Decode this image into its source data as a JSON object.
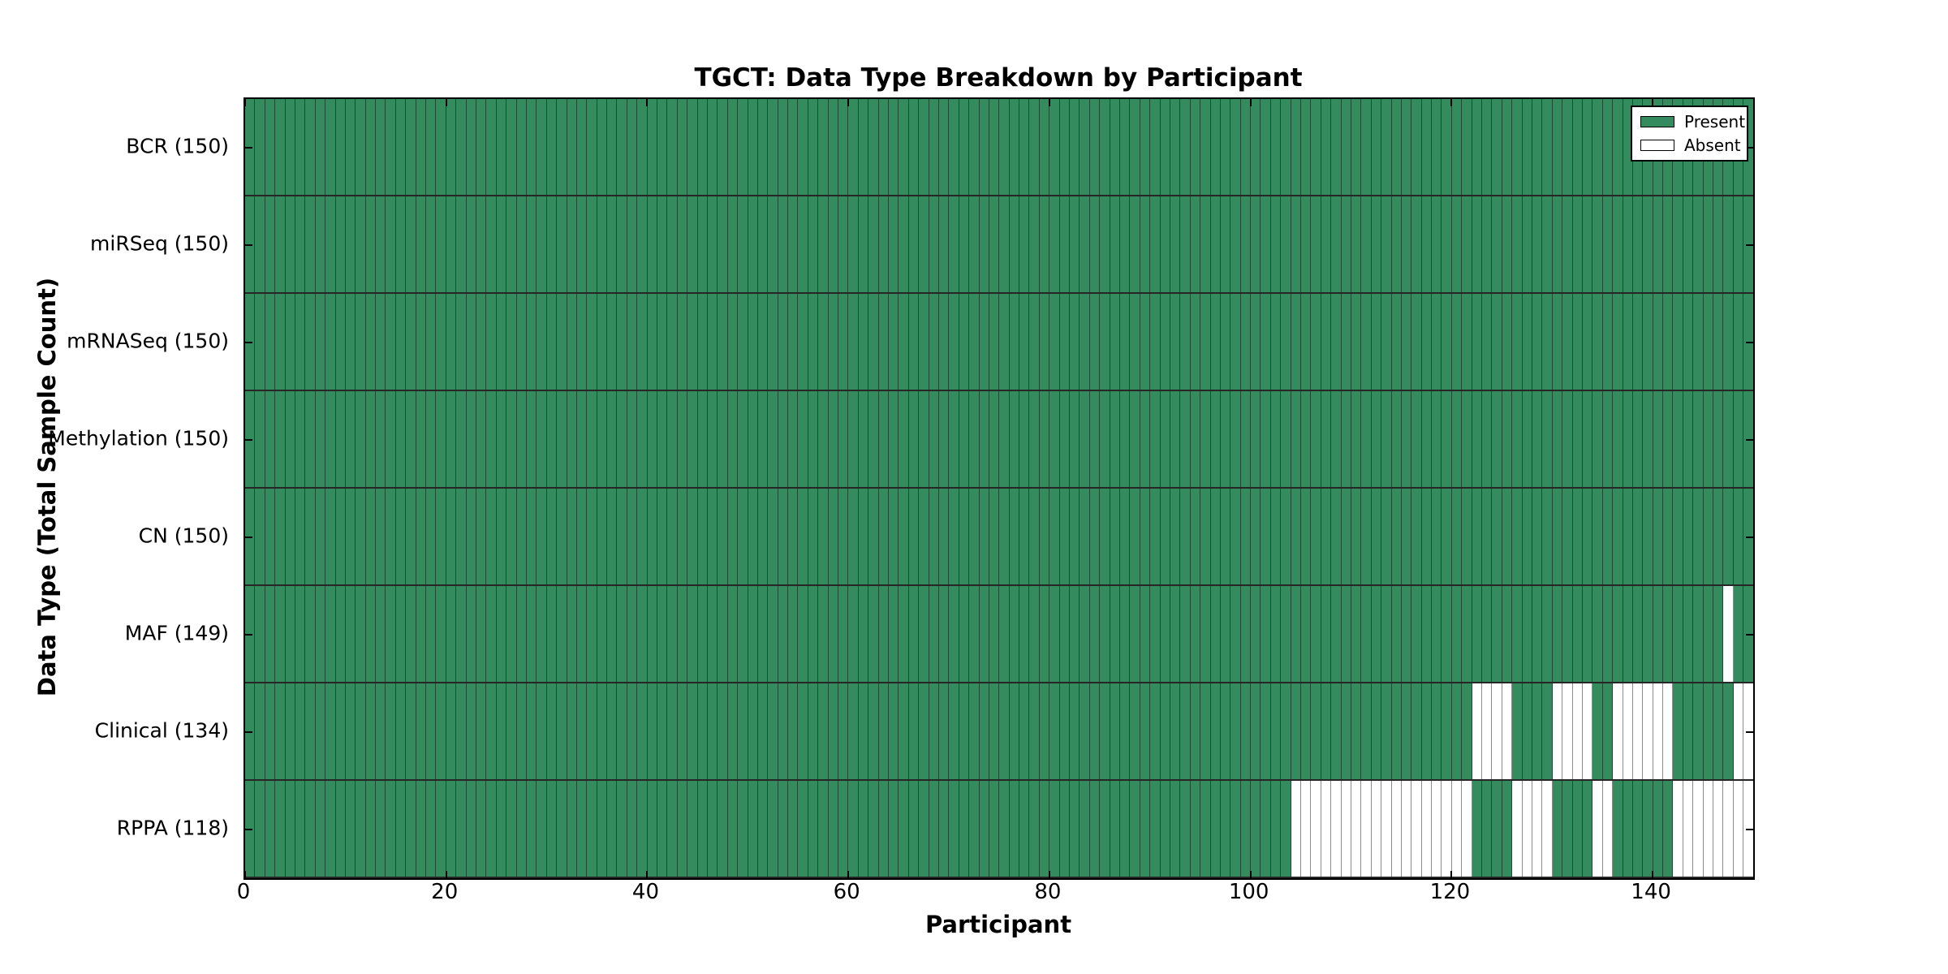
{
  "chart_data": {
    "type": "heatmap",
    "title": "TGCT: Data Type Breakdown by Participant",
    "xlabel": "Participant",
    "ylabel": "Data Type (Total Sample Count)",
    "xlim": [
      0,
      150
    ],
    "n_participants": 150,
    "x_ticks": [
      0,
      20,
      40,
      60,
      80,
      100,
      120,
      140
    ],
    "grid": "per-cell gridlines",
    "legend_position": "upper right",
    "legend": [
      {
        "label": "Present",
        "color": "#348c5e"
      },
      {
        "label": "Absent",
        "color": "#ffffff"
      }
    ],
    "colors": {
      "present": "#348c5e",
      "absent": "#ffffff",
      "cell_border": "rgba(0,0,0,0.45)",
      "row_border": "rgba(0,0,0,0.85)",
      "axis": "#000000"
    },
    "rows": [
      {
        "label": "BCR (150)",
        "data_type": "BCR",
        "present_count": 150,
        "absent_ranges": []
      },
      {
        "label": "miRSeq (150)",
        "data_type": "miRSeq",
        "present_count": 150,
        "absent_ranges": []
      },
      {
        "label": "mRNASeq (150)",
        "data_type": "mRNASeq",
        "present_count": 150,
        "absent_ranges": []
      },
      {
        "label": "Methylation (150)",
        "data_type": "Methylation",
        "present_count": 150,
        "absent_ranges": []
      },
      {
        "label": "CN (150)",
        "data_type": "CN",
        "present_count": 150,
        "absent_ranges": []
      },
      {
        "label": "MAF (149)",
        "data_type": "MAF",
        "present_count": 149,
        "absent_ranges": [
          [
            147,
            148
          ]
        ]
      },
      {
        "label": "Clinical (134)",
        "data_type": "Clinical",
        "present_count": 134,
        "absent_ranges": [
          [
            122,
            126
          ],
          [
            130,
            134
          ],
          [
            136,
            142
          ],
          [
            148,
            150
          ]
        ]
      },
      {
        "label": "RPPA (118)",
        "data_type": "RPPA",
        "present_count": 118,
        "absent_ranges": [
          [
            104,
            122
          ],
          [
            126,
            130
          ],
          [
            134,
            136
          ],
          [
            142,
            150
          ]
        ]
      }
    ]
  }
}
